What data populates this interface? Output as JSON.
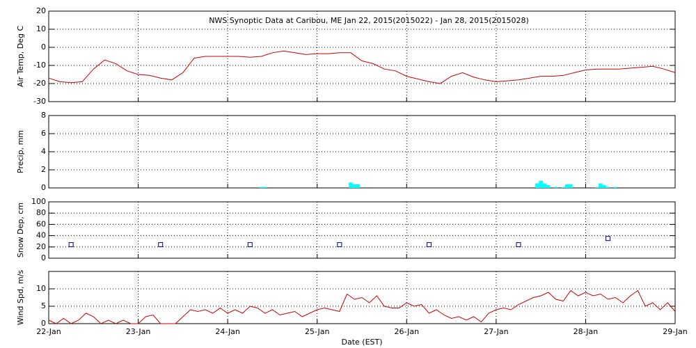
{
  "chart_data": [
    {
      "type": "line",
      "title": "NWS Synoptic Data at Caribou, ME   Jan 22, 2015(2015022) - Jan 28, 2015(2015028)",
      "y_label": "Air Temp, Deg C",
      "color": "#cc0000",
      "x": [
        0,
        3,
        6,
        9,
        12,
        15,
        18,
        21,
        24,
        27,
        30,
        33,
        36,
        39,
        42,
        45,
        48,
        51,
        54,
        57,
        60,
        63,
        66,
        69,
        72,
        75,
        78,
        81,
        84,
        87,
        90,
        93,
        96,
        99,
        102,
        105,
        108,
        111,
        114,
        117,
        120,
        123,
        126,
        129,
        132,
        135,
        138,
        141,
        144,
        147,
        150,
        153,
        156,
        159,
        162,
        165,
        168
      ],
      "values": [
        -17,
        -19,
        -19.5,
        -19,
        -12,
        -7,
        -9,
        -13,
        -15,
        -15.5,
        -17,
        -18,
        -14,
        -6,
        -5,
        -5,
        -5,
        -5,
        -5.5,
        -5,
        -3,
        -2,
        -3,
        -4,
        -3.5,
        -3.5,
        -3,
        -3,
        -7.5,
        -9,
        -12,
        -13,
        -16,
        -17.5,
        -19,
        -20,
        -16,
        -14,
        -16.5,
        -18,
        -19,
        -18.5,
        -18,
        -17,
        -16,
        -16,
        -15.5,
        -14,
        -12.5,
        -12,
        -12,
        -12,
        -11.5,
        -11,
        -10.5,
        -12,
        -14
      ],
      "xlim": [
        0,
        168
      ],
      "ylim": [
        -30,
        20
      ],
      "yticks": [
        -30,
        -20,
        -10,
        0,
        10,
        20
      ],
      "grid": true
    },
    {
      "type": "bar",
      "y_label": "Precip, mm",
      "color": "#00ffff",
      "x": [
        57,
        58,
        81,
        82,
        83,
        131,
        132,
        133,
        134,
        136,
        138,
        139,
        140,
        147,
        148,
        149,
        150,
        152
      ],
      "values": [
        0.1,
        0.1,
        0.6,
        0.4,
        0.4,
        0.5,
        0.8,
        0.5,
        0.3,
        0.1,
        0.1,
        0.4,
        0.4,
        0.1,
        0.5,
        0.3,
        0.1,
        0.1
      ],
      "xlim": [
        0,
        168
      ],
      "ylim": [
        0,
        8
      ],
      "yticks": [
        0,
        2,
        4,
        6,
        8
      ],
      "grid": true
    },
    {
      "type": "scatter",
      "y_label": "Snow Dep, cm",
      "color": "#000080",
      "x": [
        6,
        30,
        54,
        78,
        102,
        126,
        150
      ],
      "values": [
        24,
        24,
        24,
        24,
        24,
        24,
        35
      ],
      "xlim": [
        0,
        168
      ],
      "ylim": [
        0,
        100
      ],
      "yticks": [
        0,
        20,
        40,
        60,
        80,
        100
      ],
      "grid": true
    },
    {
      "type": "line",
      "y_label": "Wind Spd, m/s",
      "x_label": "Date (EST)",
      "color": "#cc0000",
      "x": [
        0,
        2,
        4,
        6,
        8,
        10,
        12,
        14,
        16,
        18,
        20,
        22,
        24,
        26,
        28,
        30,
        32,
        34,
        36,
        38,
        40,
        42,
        44,
        46,
        48,
        50,
        52,
        54,
        56,
        58,
        60,
        62,
        64,
        66,
        68,
        70,
        72,
        74,
        76,
        78,
        80,
        82,
        84,
        86,
        88,
        90,
        92,
        94,
        96,
        98,
        100,
        102,
        104,
        106,
        108,
        110,
        112,
        114,
        116,
        118,
        120,
        122,
        124,
        126,
        128,
        130,
        132,
        134,
        136,
        138,
        140,
        142,
        144,
        146,
        148,
        150,
        152,
        154,
        156,
        158,
        160,
        162,
        164,
        166,
        168
      ],
      "values": [
        1,
        0,
        1.5,
        0,
        1,
        3,
        2,
        0,
        1,
        0,
        1,
        0,
        0,
        2,
        2.5,
        0,
        0,
        0,
        2,
        4,
        3.5,
        4,
        3,
        4.5,
        3,
        4,
        3,
        5,
        4.5,
        3,
        4,
        2.5,
        3,
        3.5,
        2,
        3,
        4,
        4.5,
        4,
        3.5,
        8.5,
        7,
        7.5,
        6,
        8,
        5,
        4.5,
        4.5,
        6,
        5,
        5.5,
        3,
        4,
        2.5,
        1.5,
        2,
        1,
        2,
        0.5,
        3,
        4,
        4.5,
        4,
        5.5,
        6.5,
        7.5,
        8,
        9,
        7,
        6.5,
        9.5,
        8,
        9,
        8,
        8.5,
        7,
        7.5,
        6,
        8,
        9.5,
        5,
        6,
        4,
        6,
        3.5
      ],
      "xlim": [
        0,
        168
      ],
      "ylim": [
        0,
        15
      ],
      "yticks": [
        0,
        5,
        10
      ],
      "grid": true,
      "xticks": [
        {
          "value": 0,
          "label": "22-Jan"
        },
        {
          "value": 24,
          "label": "23-Jan"
        },
        {
          "value": 48,
          "label": "24-Jan"
        },
        {
          "value": 72,
          "label": "25-Jan"
        },
        {
          "value": 96,
          "label": "26-Jan"
        },
        {
          "value": 120,
          "label": "27-Jan"
        },
        {
          "value": 144,
          "label": "28-Jan"
        },
        {
          "value": 168,
          "label": "29-Jan"
        }
      ]
    }
  ]
}
